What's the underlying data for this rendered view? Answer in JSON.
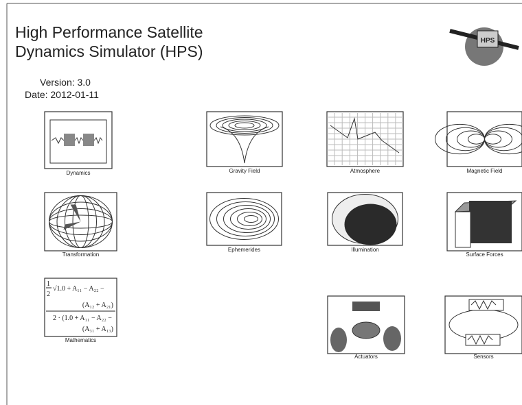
{
  "header": {
    "title_lines": [
      "High Performance Satellite",
      "Dynamics Simulator (HPS)"
    ],
    "version": "Version: 3.0",
    "date": "Date: 2012-01-11",
    "logo_text": "HPS"
  },
  "blocks": [
    {
      "label": "Dynamics"
    },
    {
      "label": "Gravity Field"
    },
    {
      "label": "Atmosphere"
    },
    {
      "label": "Magnetic Field"
    },
    {
      "label": "Transformation"
    },
    {
      "label": "Ephemerides"
    },
    {
      "label": "Illumination"
    },
    {
      "label": "Surface Forces"
    },
    {
      "label": "Mathematics"
    },
    {
      "label": "Actuators"
    },
    {
      "label": "Sensors"
    }
  ],
  "math": {
    "fraction": "1",
    "half": "2",
    "lines": [
      "√1.0 + A₁₁ − A₂₂ −",
      "(A₁₂ + A₂₁)",
      "2 · (1.0 + A₁₁ − A₂₂ −",
      "(A₃₁ + A₁₃)"
    ]
  }
}
